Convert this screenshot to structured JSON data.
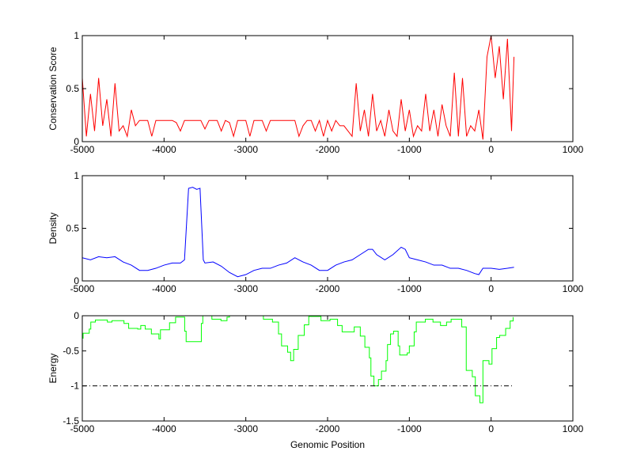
{
  "chart_data": [
    {
      "type": "line",
      "ylabel": "Conservation Score",
      "xlim": [
        -5000,
        1000
      ],
      "ylim": [
        0,
        1
      ],
      "xticks": [
        -5000,
        -4000,
        -3000,
        -2000,
        -1000,
        0,
        1000
      ],
      "yticks": [
        0,
        0.5,
        1
      ],
      "grid": false,
      "color": "#ff0000",
      "x": [
        -5000,
        -4950,
        -4900,
        -4850,
        -4800,
        -4750,
        -4700,
        -4650,
        -4600,
        -4550,
        -4500,
        -4450,
        -4400,
        -4350,
        -4300,
        -4250,
        -4200,
        -4150,
        -4100,
        -4050,
        -4000,
        -3950,
        -3900,
        -3850,
        -3800,
        -3750,
        -3700,
        -3650,
        -3600,
        -3550,
        -3500,
        -3450,
        -3400,
        -3350,
        -3300,
        -3250,
        -3200,
        -3150,
        -3100,
        -3050,
        -3000,
        -2950,
        -2900,
        -2850,
        -2800,
        -2750,
        -2700,
        -2650,
        -2600,
        -2550,
        -2500,
        -2450,
        -2400,
        -2350,
        -2300,
        -2250,
        -2200,
        -2150,
        -2100,
        -2050,
        -2000,
        -1950,
        -1900,
        -1850,
        -1800,
        -1750,
        -1700,
        -1650,
        -1600,
        -1550,
        -1500,
        -1450,
        -1400,
        -1350,
        -1300,
        -1250,
        -1200,
        -1150,
        -1100,
        -1050,
        -1000,
        -950,
        -900,
        -850,
        -800,
        -750,
        -700,
        -650,
        -600,
        -550,
        -500,
        -450,
        -400,
        -350,
        -300,
        -250,
        -200,
        -150,
        -100,
        -50,
        0,
        50,
        100,
        150,
        200,
        250,
        280
      ],
      "y": [
        0.6,
        0.05,
        0.45,
        0.1,
        0.6,
        0.15,
        0.4,
        0.05,
        0.55,
        0.1,
        0.15,
        0.05,
        0.3,
        0.15,
        0.2,
        0.2,
        0.2,
        0.05,
        0.2,
        0.2,
        0.2,
        0.2,
        0.2,
        0.18,
        0.1,
        0.2,
        0.2,
        0.2,
        0.2,
        0.2,
        0.12,
        0.2,
        0.2,
        0.2,
        0.1,
        0.2,
        0.18,
        0.05,
        0.2,
        0.2,
        0.2,
        0.05,
        0.2,
        0.2,
        0.2,
        0.1,
        0.2,
        0.2,
        0.2,
        0.2,
        0.2,
        0.2,
        0.2,
        0.05,
        0.15,
        0.2,
        0.2,
        0.1,
        0.2,
        0.05,
        0.2,
        0.1,
        0.2,
        0.15,
        0.15,
        0.1,
        0.05,
        0.55,
        0.1,
        0.3,
        0.05,
        0.45,
        0.1,
        0.2,
        0.05,
        0.3,
        0.1,
        0.05,
        0.4,
        0.1,
        0.3,
        0.05,
        0.15,
        0.1,
        0.45,
        0.1,
        0.3,
        0.05,
        0.35,
        0.15,
        0.05,
        0.65,
        0.05,
        0.6,
        0.05,
        0.15,
        0.1,
        0.3,
        0.02,
        0.8,
        1.0,
        0.6,
        0.9,
        0.4,
        0.97,
        0.1,
        0.8
      ]
    },
    {
      "type": "line",
      "ylabel": "Density",
      "xlim": [
        -5000,
        1000
      ],
      "ylim": [
        0,
        1
      ],
      "xticks": [
        -5000,
        -4000,
        -3000,
        -2000,
        -1000,
        0,
        1000
      ],
      "yticks": [
        0,
        0.5,
        1
      ],
      "grid": false,
      "color": "#0000ff",
      "x": [
        -5000,
        -4900,
        -4800,
        -4700,
        -4600,
        -4500,
        -4400,
        -4300,
        -4200,
        -4100,
        -4000,
        -3900,
        -3800,
        -3750,
        -3700,
        -3650,
        -3600,
        -3560,
        -3520,
        -3500,
        -3400,
        -3300,
        -3200,
        -3100,
        -3000,
        -2900,
        -2800,
        -2700,
        -2600,
        -2500,
        -2400,
        -2300,
        -2200,
        -2100,
        -2000,
        -1900,
        -1800,
        -1700,
        -1600,
        -1500,
        -1450,
        -1400,
        -1300,
        -1200,
        -1100,
        -1050,
        -1000,
        -900,
        -800,
        -700,
        -600,
        -500,
        -400,
        -300,
        -200,
        -150,
        -100,
        0,
        100,
        200,
        280
      ],
      "y": [
        0.22,
        0.2,
        0.23,
        0.22,
        0.23,
        0.18,
        0.15,
        0.1,
        0.1,
        0.12,
        0.15,
        0.17,
        0.17,
        0.2,
        0.88,
        0.89,
        0.87,
        0.88,
        0.2,
        0.17,
        0.18,
        0.14,
        0.08,
        0.04,
        0.06,
        0.1,
        0.12,
        0.12,
        0.15,
        0.17,
        0.22,
        0.18,
        0.15,
        0.1,
        0.1,
        0.15,
        0.18,
        0.2,
        0.25,
        0.3,
        0.3,
        0.25,
        0.2,
        0.25,
        0.32,
        0.3,
        0.22,
        0.2,
        0.18,
        0.15,
        0.15,
        0.12,
        0.12,
        0.1,
        0.07,
        0.06,
        0.12,
        0.12,
        0.11,
        0.12,
        0.13
      ]
    },
    {
      "type": "line",
      "xlabel": "Genomic Position",
      "ylabel": "Energy",
      "xlim": [
        -5000,
        1000
      ],
      "ylim": [
        -1.5,
        0
      ],
      "xticks": [
        -5000,
        -4000,
        -3000,
        -2000,
        -1000,
        0,
        1000
      ],
      "yticks": [
        -1.5,
        -1,
        -0.5,
        0
      ],
      "grid": false,
      "color": "#00ff00",
      "step": true,
      "x": [
        -5000,
        -4990,
        -4915,
        -4896,
        -4840,
        -4693,
        -4637,
        -4490,
        -4433,
        -4322,
        -4285,
        -4230,
        -4155,
        -4063,
        -4044,
        -3933,
        -3859,
        -3767,
        -3748,
        -3730,
        -3563,
        -3544,
        -3526,
        -3415,
        -3304,
        -3230,
        -3200,
        -2850,
        -2822,
        -2785,
        -2674,
        -2600,
        -2563,
        -2489,
        -2452,
        -2415,
        -2359,
        -2285,
        -2230,
        -2081,
        -1970,
        -1878,
        -1822,
        -1674,
        -1600,
        -1544,
        -1489,
        -1470,
        -1433,
        -1378,
        -1341,
        -1285,
        -1267,
        -1230,
        -1193,
        -1137,
        -1118,
        -1026,
        -1000,
        -941,
        -915,
        -804,
        -711,
        -619,
        -545,
        -489,
        -359,
        -304,
        -230,
        -193,
        -137,
        -100,
        -26,
        11,
        67,
        104,
        178,
        233,
        270
      ],
      "y": [
        -0.32,
        -0.25,
        -0.19,
        -0.09,
        -0.06,
        -0.09,
        -0.07,
        -0.11,
        -0.18,
        -0.19,
        -0.14,
        -0.19,
        -0.26,
        -0.33,
        -0.2,
        -0.1,
        -0.02,
        -0.02,
        -0.22,
        -0.37,
        -0.37,
        -0.11,
        0,
        -0.05,
        -0.07,
        -0.02,
        0.05,
        0.05,
        0,
        -0.05,
        -0.09,
        -0.26,
        -0.43,
        -0.52,
        -0.64,
        -0.48,
        -0.28,
        -0.13,
        -0.01,
        -0.07,
        -0.05,
        -0.14,
        -0.23,
        -0.16,
        -0.29,
        -0.45,
        -0.6,
        -0.86,
        -1.0,
        -0.91,
        -0.79,
        -0.64,
        -0.41,
        -0.26,
        -0.22,
        -0.43,
        -0.56,
        -0.53,
        -0.43,
        -0.23,
        -0.09,
        -0.05,
        -0.09,
        -0.14,
        -0.09,
        -0.05,
        -0.16,
        -0.78,
        -0.87,
        -1.14,
        -1.24,
        -0.64,
        -0.69,
        -0.47,
        -0.31,
        -0.28,
        -0.18,
        -0.075,
        -0.02
      ],
      "reference_line": {
        "y": -1,
        "x": [
          -5000,
          280
        ],
        "color": "#000000",
        "style": "dash-dot"
      }
    }
  ]
}
